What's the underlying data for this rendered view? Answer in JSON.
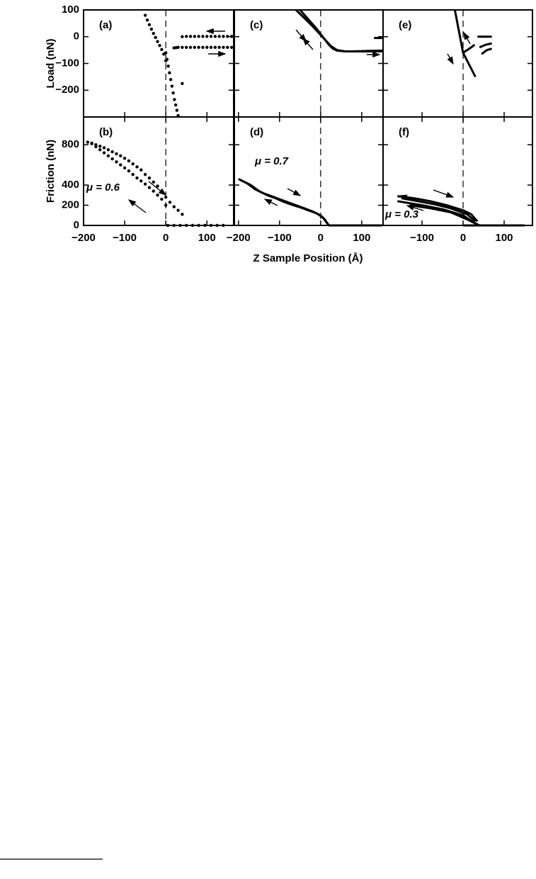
{
  "chart_data": [
    {
      "type": "scatter",
      "panel_label": "(a)",
      "ylabel": "Load (nN)",
      "xlim": [
        -200,
        165
      ],
      "ylim": [
        -300,
        100
      ],
      "yticks": [
        100,
        0,
        {
          "value": -100,
          "label": "−100"
        },
        {
          "value": -200,
          "label": "−200"
        }
      ],
      "color": "#000000",
      "series": [
        {
          "x": [
            -50,
            -45,
            -40,
            -35,
            -30,
            -25,
            -20,
            -15,
            -10,
            -5,
            0
          ],
          "values": [
            80,
            62,
            45,
            28,
            12,
            -3,
            -18,
            -33,
            -48,
            -65,
            -90
          ]
        },
        {
          "x": [
            0,
            3,
            6,
            9,
            12,
            15,
            18,
            21,
            24,
            27,
            30
          ],
          "values": [
            -60,
            -85,
            -110,
            -135,
            -160,
            -185,
            -210,
            -235,
            -255,
            -275,
            -295
          ]
        },
        {
          "x": [
            40,
            50,
            60,
            70,
            80,
            90,
            100,
            110,
            120,
            130,
            140,
            150,
            160
          ],
          "values": [
            0,
            1,
            1,
            1,
            1,
            1,
            1,
            1,
            1,
            1,
            1,
            1,
            1
          ]
        },
        {
          "x": [
            20,
            25,
            30,
            40,
            50,
            60,
            70,
            80,
            90,
            100,
            110,
            120,
            130,
            140,
            150,
            160
          ],
          "values": [
            -42,
            -41,
            -40,
            -40,
            -40,
            -40,
            -40,
            -40,
            -40,
            -40,
            -40,
            -40,
            -40,
            -40,
            -40,
            -40
          ]
        },
        {
          "x": [
            40
          ],
          "values": [
            -175
          ]
        }
      ]
    },
    {
      "type": "scatter",
      "panel_label": "(b)",
      "ylabel": "Friction (nN)",
      "annotation": "μ = 0.6",
      "xlim": [
        -200,
        165
      ],
      "ylim": [
        0,
        1075
      ],
      "yticks": [
        0,
        200,
        400,
        800
      ],
      "xticks": [
        {
          "value": -200,
          "label": "−200"
        },
        {
          "value": -100,
          "label": "−100"
        },
        0,
        100
      ],
      "color": "#000000",
      "series": [
        {
          "x": [
            -190,
            -180,
            -170,
            -160,
            -150,
            -140,
            -130,
            -120,
            -110,
            -100,
            -90,
            -80,
            -70,
            -60,
            -50,
            -40,
            -30,
            -20,
            -10,
            0,
            10,
            20,
            30,
            40
          ],
          "values": [
            825,
            815,
            800,
            785,
            770,
            750,
            730,
            710,
            690,
            665,
            640,
            610,
            580,
            550,
            505,
            470,
            430,
            390,
            340,
            280,
            230,
            185,
            150,
            110
          ]
        },
        {
          "x": [
            -180,
            -170,
            -160,
            -150,
            -140,
            -130,
            -120,
            -110,
            -100,
            -90,
            -80,
            -70,
            -60,
            -50,
            -40,
            -30,
            -20,
            -10,
            0
          ],
          "values": [
            810,
            780,
            750,
            720,
            690,
            660,
            630,
            600,
            570,
            540,
            505,
            470,
            440,
            410,
            375,
            340,
            300,
            260,
            200
          ]
        },
        {
          "x": [
            5,
            20,
            35,
            50,
            65,
            80,
            95,
            110,
            125,
            140
          ],
          "values": [
            0,
            0,
            0,
            0,
            0,
            0,
            0,
            0,
            0,
            0
          ]
        }
      ]
    },
    {
      "type": "line",
      "panel_label": "(c)",
      "xlim": [
        -210,
        152
      ],
      "ylim": [
        -300,
        100
      ],
      "color": "#000000",
      "series": [
        {
          "x": [
            -50,
            -30,
            -10,
            0,
            10,
            20,
            30,
            40,
            60,
            80,
            100,
            120,
            150
          ],
          "values": [
            100,
            65,
            30,
            10,
            -10,
            -30,
            -45,
            -52,
            -55,
            -55,
            -54,
            -53,
            -52
          ]
        },
        {
          "x": [
            -60,
            -40,
            -20,
            -5,
            10,
            25,
            40,
            60,
            90,
            120,
            150
          ],
          "values": [
            100,
            70,
            40,
            15,
            -10,
            -35,
            -50,
            -55,
            -55,
            -55,
            -55
          ]
        },
        {
          "x": [
            130,
            150
          ],
          "values": [
            -5,
            -5
          ]
        }
      ]
    },
    {
      "type": "line",
      "panel_label": "(d)",
      "annotation": "μ = 0.7",
      "xlabel": "Z Sample Position (Å)",
      "xlim": [
        -210,
        152
      ],
      "ylim": [
        0,
        1075
      ],
      "xticks": [
        {
          "value": -200,
          "label": "−200"
        },
        {
          "value": -100,
          "label": "−100"
        },
        0,
        100
      ],
      "color": "#000000",
      "series": [
        {
          "x": [
            -200,
            -180,
            -160,
            -140,
            -120,
            -100,
            -80,
            -60,
            -40,
            -20,
            0,
            10,
            20,
            40,
            80,
            120,
            150
          ],
          "values": [
            460,
            420,
            360,
            320,
            290,
            260,
            230,
            200,
            170,
            140,
            100,
            60,
            0,
            0,
            0,
            0,
            0
          ]
        },
        {
          "x": [
            -195,
            -170,
            -150,
            -130,
            -110,
            -90,
            -70,
            -50,
            -30,
            -10,
            5,
            20
          ],
          "values": [
            450,
            400,
            340,
            300,
            270,
            235,
            205,
            180,
            150,
            120,
            80,
            0
          ]
        }
      ]
    },
    {
      "type": "line",
      "panel_label": "(e)",
      "xlim": [
        -195,
        169
      ],
      "ylim": [
        -300,
        100
      ],
      "color": "#000000",
      "series": [
        {
          "x": [
            -20,
            -10,
            0,
            10,
            20,
            28
          ],
          "values": [
            100,
            20,
            -60,
            -50,
            -40,
            -30
          ]
        },
        {
          "x": [
            0,
            10,
            20,
            30
          ],
          "values": [
            -60,
            -90,
            -120,
            -150
          ]
        },
        {
          "x": [
            35,
            70
          ],
          "values": [
            0,
            0
          ]
        },
        {
          "x": [
            40,
            55,
            70
          ],
          "values": [
            -40,
            -30,
            -25
          ]
        },
        {
          "x": [
            45,
            58,
            70
          ],
          "values": [
            -65,
            -50,
            -45
          ]
        }
      ]
    },
    {
      "type": "line",
      "panel_label": "(f)",
      "annotation": "μ = 0.3",
      "xlim": [
        -195,
        169
      ],
      "ylim": [
        0,
        1075
      ],
      "xticks": [
        {
          "value": -100,
          "label": "−100"
        },
        0,
        100
      ],
      "color": "#000000",
      "series": [
        {
          "x": [
            -160,
            -120,
            -80,
            -40,
            0,
            20,
            35
          ],
          "values": [
            290,
            270,
            240,
            200,
            150,
            110,
            40
          ]
        },
        {
          "x": [
            -150,
            -110,
            -70,
            -30,
            10,
            30
          ],
          "values": [
            270,
            240,
            210,
            170,
            110,
            40
          ]
        },
        {
          "x": [
            -160,
            -100,
            -50,
            0,
            30
          ],
          "values": [
            240,
            200,
            160,
            100,
            20
          ]
        },
        {
          "x": [
            -130,
            -80,
            -30,
            10,
            40
          ],
          "values": [
            200,
            170,
            130,
            60,
            0
          ]
        },
        {
          "x": [
            0,
            40,
            80,
            120,
            150
          ],
          "values": [
            0,
            0,
            0,
            0,
            0
          ]
        }
      ]
    }
  ]
}
